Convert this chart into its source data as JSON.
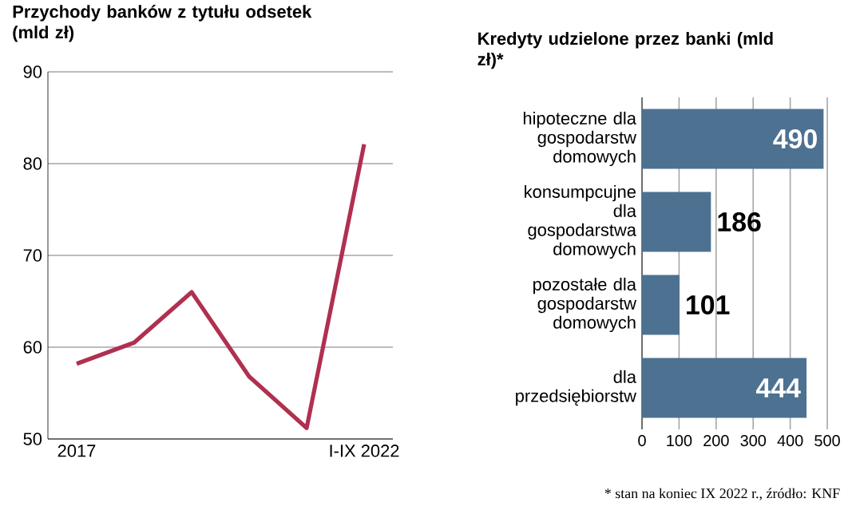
{
  "chart_data": [
    {
      "type": "line",
      "title": "Przychody banków z tytułu odsetek (mld zł)",
      "categories": [
        "2017",
        null,
        null,
        null,
        null,
        "I-IX 2022"
      ],
      "values": [
        58.2,
        60.5,
        66,
        56.8,
        51.2,
        82.1
      ],
      "color": "#b0304f",
      "ylim": [
        50,
        90
      ],
      "yticks": [
        50,
        60,
        70,
        80,
        90
      ],
      "grid": "y"
    },
    {
      "type": "bar",
      "orientation": "horizontal",
      "title": "Kredyty udzielone przez banki (mld zł)*",
      "categories": [
        "hipoteczne dla gospodarstw domowych",
        "konsumpcujne dla gospodarstwa domowych",
        "pozostałe dla gospodarstw domowych",
        "dla przedsiębiorstw"
      ],
      "values": [
        490,
        186,
        101,
        444
      ],
      "value_labels": [
        "490",
        "186",
        "101",
        "444"
      ],
      "color": "#4d7191",
      "xlim": [
        0,
        500
      ],
      "xticks": [
        0,
        100,
        200,
        300,
        400,
        500
      ],
      "grid": "x",
      "annotations": [
        "* stan na koniec IX 2022 r., źródło: KNF"
      ]
    }
  ]
}
